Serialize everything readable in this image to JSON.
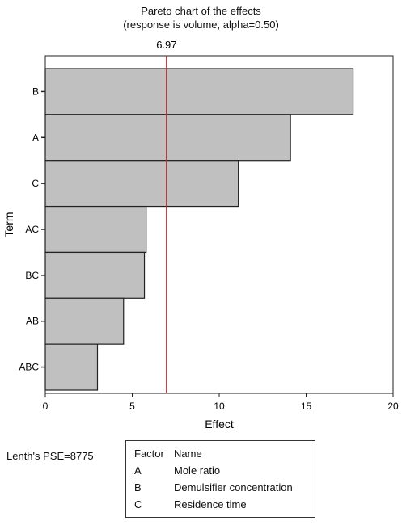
{
  "chart_data": {
    "type": "bar",
    "orientation": "horizontal",
    "title": "Pareto chart of the effects",
    "subtitle": "(response is volume, alpha=0.50)",
    "xlabel": "Effect",
    "ylabel": "Term",
    "categories": [
      "B",
      "A",
      "C",
      "AC",
      "BC",
      "AB",
      "ABC"
    ],
    "values": [
      17.7,
      14.1,
      11.1,
      5.8,
      5.7,
      4.5,
      3.0
    ],
    "xlim": [
      0,
      20
    ],
    "xticks": [
      "0",
      "5",
      "10",
      "15",
      "20"
    ],
    "reference_line": {
      "value": 6.97,
      "label": "6.97",
      "color": "#b03030"
    },
    "bar_color": "#c0c0c0",
    "grid": false
  },
  "note": "Lenth's PSE=8775",
  "legend": {
    "header_factor": "Factor",
    "header_name": "Name",
    "rows": [
      {
        "code": "A",
        "name": "Mole ratio"
      },
      {
        "code": "B",
        "name": "Demulsifier concentration"
      },
      {
        "code": "C",
        "name": "Residence time"
      }
    ]
  }
}
